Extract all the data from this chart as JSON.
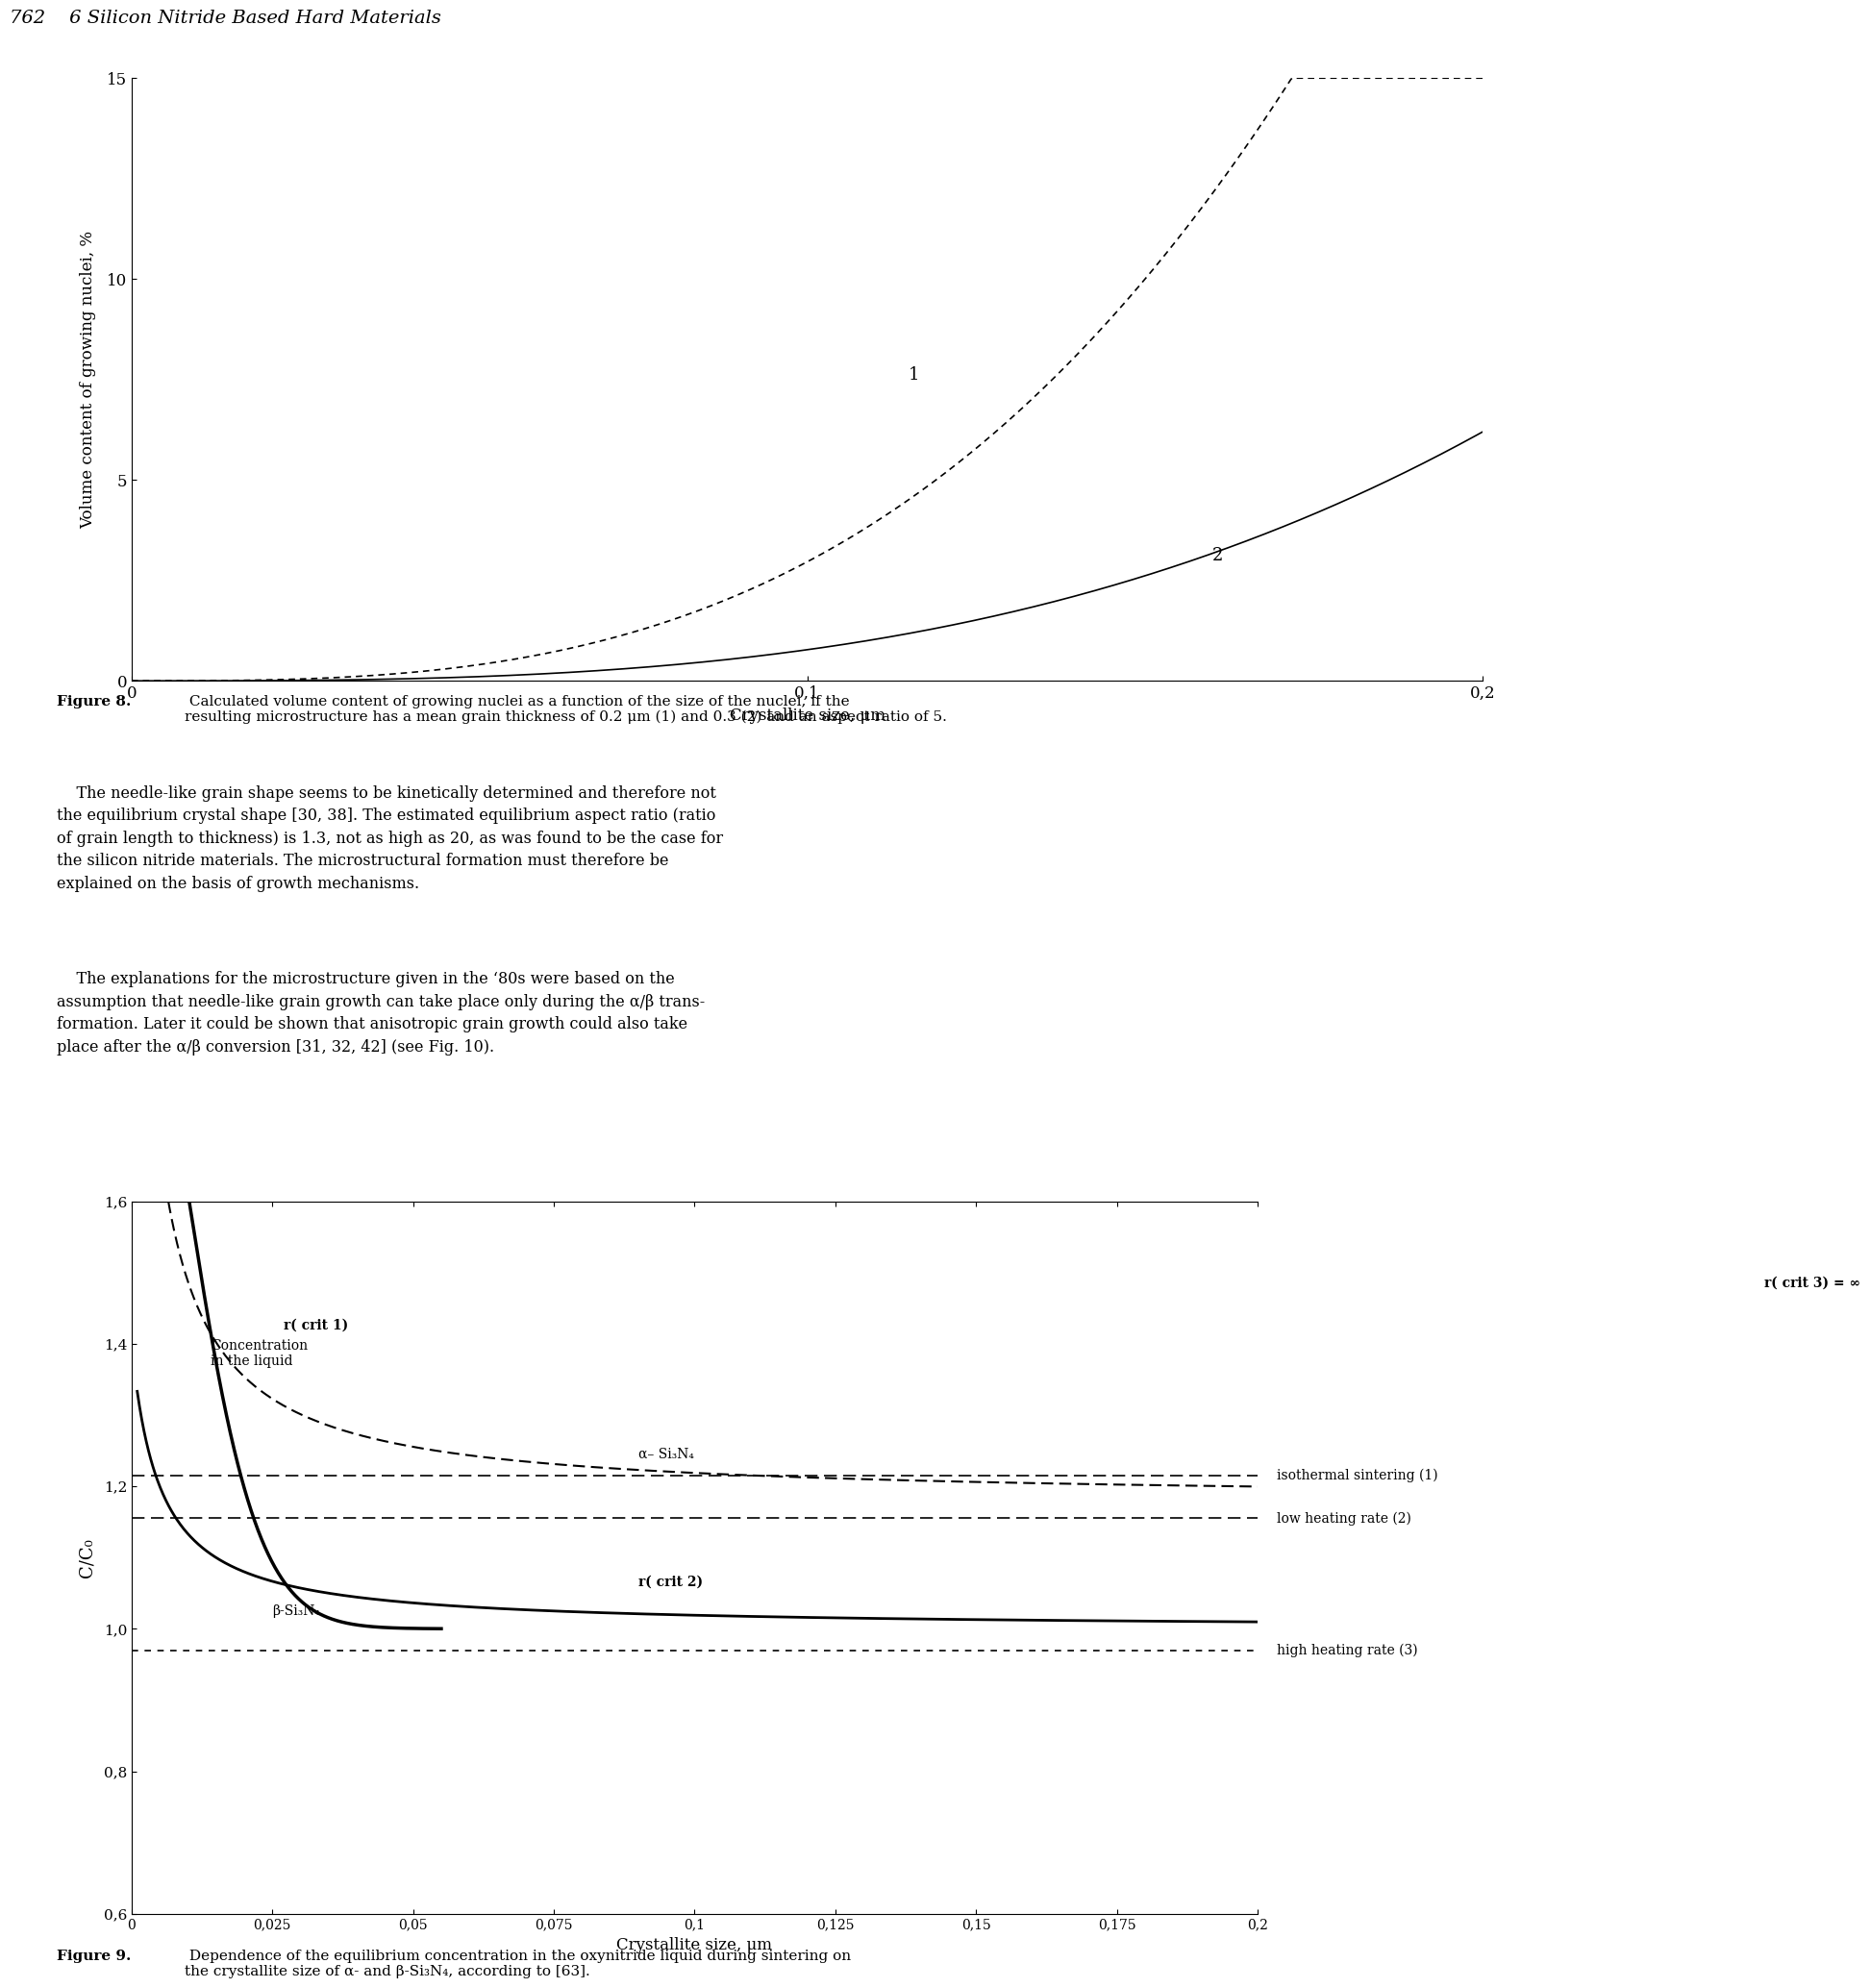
{
  "page_title": "762    6 Silicon Nitride Based Hard Materials",
  "fig8": {
    "xlabel": "Crystallite size, μm",
    "ylabel": "Volume content of growing nuclei, %",
    "xlim": [
      0,
      0.2
    ],
    "ylim": [
      0,
      15
    ],
    "xticks": [
      0,
      0.1,
      0.2
    ],
    "yticks": [
      0,
      5,
      10,
      15
    ],
    "caption_bold": "Figure 8.",
    "caption_rest": " Calculated volume content of growing nuclei as a function of the size of the nuclei, if the\nresulting microstructure has a mean grain thickness of 0.2 μm (1) and 0.3 (2) and an aspect ratio of 5.",
    "curve1_label": "1",
    "curve2_label": "2"
  },
  "text_paragraph1": "    The needle-like grain shape seems to be kinetically determined and therefore not\nthe equilibrium crystal shape [30, 38]. The estimated equilibrium aspect ratio (ratio\nof grain length to thickness) is 1.3, not as high as 20, as was found to be the case for\nthe silicon nitride materials. The microstructural formation must therefore be\nexplained on the basis of growth mechanisms.",
  "text_paragraph2": "    The explanations for the microstructure given in the ‘80s were based on the\nassumption that needle-like grain growth can take place only during the α/β trans-\nformation. Later it could be shown that anisotropic grain growth could also take\nplace after the α/β conversion [31, 32, 42] (see Fig. 10).",
  "fig9": {
    "xlabel": "Crystallite size, μm",
    "ylabel": "C/C₀",
    "xlim": [
      0,
      0.2
    ],
    "ylim": [
      0.6,
      1.6
    ],
    "xticks": [
      0,
      0.025,
      0.05,
      0.075,
      0.1,
      0.125,
      0.15,
      0.175,
      0.2
    ],
    "yticks": [
      0.6,
      0.8,
      1.0,
      1.2,
      1.4,
      1.6
    ],
    "caption_bold": "Figure 9.",
    "caption_rest": " Dependence of the equilibrium concentration in the oxynitride liquid during sintering on\nthe crystallite size of α- and β-Si₃N₄, according to [63].",
    "alpha_label": "α– Si₃N₄",
    "beta_label": "β-Si₃N₄",
    "rcrit1_label": "r( crit 1)",
    "rcrit2_label": "r( crit 2)",
    "rcrit3_label": "r( crit 3) = ∞",
    "isothermal_label": "isothermal sintering (1)",
    "low_heating_label": "low heating rate (2)",
    "high_heating_label": "high heating rate (3)",
    "concentration_label": "Concentration\nin the liquid"
  },
  "background_color": "#ffffff"
}
